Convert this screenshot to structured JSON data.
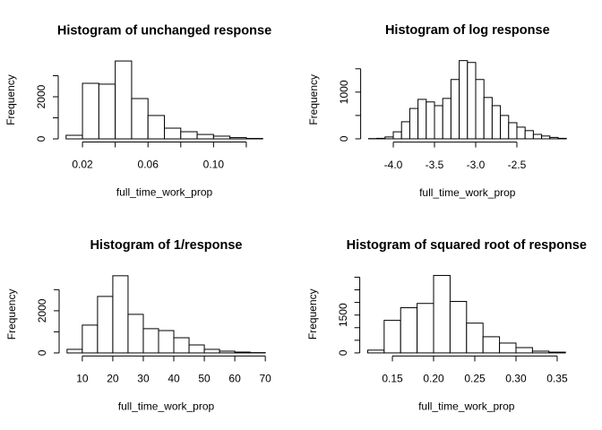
{
  "chart_data": [
    {
      "type": "histogram",
      "title": "Histogram of unchanged response",
      "xlabel": "full_time_work_prop",
      "ylabel": "Frequency",
      "bins": [
        0.01,
        0.02,
        0.03,
        0.04,
        0.05,
        0.06,
        0.07,
        0.08,
        0.09,
        0.1,
        0.11,
        0.12,
        0.13
      ],
      "values": [
        170,
        2640,
        2600,
        3700,
        1915,
        1110,
        510,
        340,
        210,
        130,
        60,
        20
      ],
      "color": "#ffffff",
      "xlim": [
        0.0052,
        0.1348
      ],
      "xticks": [
        0.02,
        0.06,
        {
          "value": 0.1,
          "label": "0.10"
        }
      ],
      "xticks_unlabeled": [
        0.04,
        0.08,
        0.12
      ],
      "ylim": [
        -148,
        3848
      ],
      "yticks": [
        0,
        2000
      ],
      "yticks_unlabeled": [
        1000,
        3000
      ]
    },
    {
      "type": "histogram",
      "title": "Histogram of log response",
      "xlabel": "full_time_work_prop",
      "ylabel": "Frequency",
      "bins": [
        -4.3,
        -4.2,
        -4.1,
        -4.0,
        -3.9,
        -3.8,
        -3.7,
        -3.6,
        -3.5,
        -3.4,
        -3.3,
        -3.2,
        -3.1,
        -3.0,
        -2.9,
        -2.8,
        -2.7,
        -2.6,
        -2.5,
        -2.4,
        -2.3,
        -2.2,
        -2.1,
        -2.0,
        -1.9
      ],
      "values": [
        5,
        10,
        40,
        150,
        365,
        650,
        845,
        790,
        710,
        865,
        1270,
        1675,
        1635,
        1270,
        885,
        710,
        500,
        345,
        250,
        175,
        95,
        60,
        30,
        10
      ],
      "color": "#ffffff",
      "xlim": [
        -4.396,
        -1.804
      ],
      "xticks": [
        {
          "value": -4.0,
          "label": "-4.0"
        },
        -3.5,
        {
          "value": -3.0,
          "label": "-3.0"
        },
        -2.5
      ],
      "xticks_unlabeled": [],
      "ylim": [
        -70,
        1745
      ],
      "yticks": [
        0,
        1000
      ],
      "yticks_unlabeled": [
        500,
        1500
      ]
    },
    {
      "type": "histogram",
      "title": "Histogram of 1/response",
      "xlabel": "full_time_work_prop",
      "ylabel": "Frequency",
      "bins": [
        5,
        10,
        15,
        20,
        25,
        30,
        35,
        40,
        45,
        50,
        55,
        60,
        65,
        70
      ],
      "values": [
        170,
        1320,
        2680,
        3660,
        1830,
        1150,
        1060,
        720,
        380,
        170,
        85,
        40,
        15
      ],
      "color": "#ffffff",
      "xlim": [
        2.4,
        72.6
      ],
      "xticks": [
        10,
        20,
        30,
        40,
        50,
        60,
        70
      ],
      "xticks_unlabeled": [],
      "ylim": [
        -146,
        3806
      ],
      "yticks": [
        0,
        2000
      ],
      "yticks_unlabeled": [
        1000,
        3000
      ]
    },
    {
      "type": "histogram",
      "title": "Histogram of squared root of response",
      "xlabel": "full_time_work_prop",
      "ylabel": "Frequency",
      "bins": [
        0.12,
        0.14,
        0.16,
        0.18,
        0.2,
        0.22,
        0.24,
        0.26,
        0.28,
        0.3,
        0.32,
        0.34,
        0.36
      ],
      "values": [
        110,
        1290,
        1790,
        1960,
        3070,
        2040,
        1180,
        640,
        390,
        210,
        70,
        30
      ],
      "color": "#ffffff",
      "xlim": [
        0.1104,
        0.3696
      ],
      "xticks": [
        0.15,
        {
          "value": 0.2,
          "label": "0.20"
        },
        0.25,
        {
          "value": 0.3,
          "label": "0.30"
        },
        0.35
      ],
      "xticks_unlabeled": [],
      "ylim": [
        -123,
        3193
      ],
      "yticks": [
        0,
        1500
      ],
      "yticks_unlabeled": [
        500,
        1000,
        2000,
        2500,
        3000
      ]
    }
  ]
}
